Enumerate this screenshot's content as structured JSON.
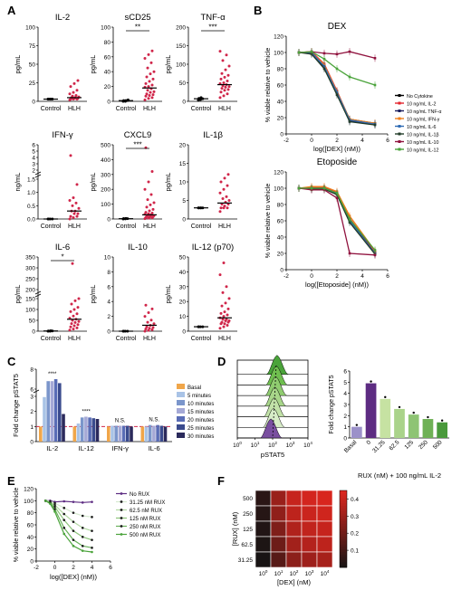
{
  "panels": {
    "A": {
      "letter": "A",
      "groups": [
        "Control",
        "HLH"
      ],
      "ylabel": "pg/mL",
      "ylabel_ifn": "ng/mL",
      "subplots": [
        {
          "title": "IL-2",
          "yticks": [
            "0",
            "25",
            "50",
            "75",
            "100"
          ],
          "ymax": 100,
          "sig": "",
          "control_mean": 3,
          "hlh_mean": 5,
          "control_points": [
            3,
            3,
            3,
            3,
            3
          ],
          "hlh_points": [
            2,
            3,
            3,
            3,
            4,
            4,
            5,
            5,
            6,
            7,
            8,
            10,
            12,
            15,
            20,
            24,
            28
          ]
        },
        {
          "title": "sCD25",
          "yticks": [
            "0",
            "20",
            "40",
            "60",
            "80",
            "100"
          ],
          "ymax": 100,
          "sig": "**",
          "control_mean": 1,
          "hlh_mean": 18,
          "control_points": [
            0,
            0,
            1,
            1,
            1,
            2
          ],
          "hlh_points": [
            2,
            4,
            5,
            7,
            8,
            9,
            10,
            12,
            13,
            15,
            17,
            19,
            20,
            22,
            24,
            27,
            30,
            33,
            37,
            40,
            45,
            52,
            58,
            63,
            68
          ]
        },
        {
          "title": "TNF-α",
          "yticks": [
            "0",
            "50",
            "100",
            "150",
            "200"
          ],
          "ymax": 200,
          "sig": "***",
          "control_mean": 7,
          "hlh_mean": 45,
          "control_points": [
            3,
            5,
            7,
            8,
            10
          ],
          "hlh_points": [
            10,
            15,
            20,
            25,
            30,
            32,
            35,
            38,
            40,
            42,
            45,
            48,
            50,
            55,
            60,
            65,
            70,
            75,
            85,
            95,
            110,
            125,
            135
          ]
        },
        {
          "title": "IFN-γ",
          "yticks": [
            "0.0",
            "0.5",
            "1.0",
            "1.5",
            "2",
            "3",
            "4",
            "5",
            "6"
          ],
          "sig": "",
          "control_mean": 0,
          "hlh_mean": 0.3,
          "control_points": [
            0,
            0,
            0,
            0
          ],
          "hlh_points": [
            0,
            0.05,
            0.1,
            0.1,
            0.2,
            0.2,
            0.3,
            0.3,
            0.4,
            0.5,
            0.6,
            0.7,
            0.8,
            1.3,
            4.3
          ]
        },
        {
          "title": "CXCL9",
          "yticks": [
            "0",
            "100",
            "200",
            "300",
            "400",
            "500"
          ],
          "ymax": 500,
          "sig": "***",
          "control_mean": 2,
          "hlh_mean": 28,
          "control_points": [
            0,
            1,
            2,
            3,
            4
          ],
          "hlh_points": [
            2,
            5,
            8,
            10,
            12,
            15,
            18,
            20,
            22,
            25,
            28,
            32,
            35,
            40,
            45,
            55,
            65,
            80,
            95,
            110,
            130,
            165,
            200,
            250,
            320,
            480
          ]
        },
        {
          "title": "IL-1β",
          "yticks": [
            "0",
            "5",
            "10",
            "15",
            "20"
          ],
          "ymax": 20,
          "sig": "",
          "control_mean": 3,
          "hlh_mean": 4.3,
          "control_points": [
            3,
            3,
            3,
            3,
            3
          ],
          "hlh_points": [
            2,
            3,
            3,
            3,
            3.5,
            4,
            4,
            4.5,
            5,
            5.5,
            6,
            7,
            8,
            9,
            10,
            11,
            12
          ]
        },
        {
          "title": "IL-6",
          "yticks": [
            "0",
            "50",
            "100",
            "150",
            "200",
            "250",
            "300",
            "350"
          ],
          "sig": "*",
          "control_mean": 1,
          "hlh_mean": 55,
          "control_points": [
            0,
            0,
            1,
            1,
            2
          ],
          "hlh_points": [
            5,
            10,
            15,
            20,
            25,
            30,
            35,
            40,
            45,
            50,
            55,
            60,
            70,
            80,
            90,
            100,
            110,
            125,
            140,
            150,
            320
          ]
        },
        {
          "title": "IL-10",
          "yticks": [
            "0",
            "2",
            "4",
            "6",
            "8",
            "10"
          ],
          "ymax": 10,
          "sig": "",
          "control_mean": 0,
          "hlh_mean": 0.8,
          "control_points": [
            0,
            0,
            0,
            0
          ],
          "hlh_points": [
            0,
            0.1,
            0.2,
            0.3,
            0.4,
            0.5,
            0.6,
            0.8,
            1,
            1.2,
            1.5,
            2,
            2.5,
            3,
            3.5
          ]
        },
        {
          "title": "IL-12 (p70)",
          "yticks": [
            "0",
            "10",
            "20",
            "30",
            "40",
            "50"
          ],
          "ymax": 50,
          "sig": "",
          "control_mean": 3,
          "hlh_mean": 9,
          "control_points": [
            3,
            3,
            3,
            3
          ],
          "hlh_points": [
            2,
            3,
            4,
            5,
            5,
            6,
            6,
            7,
            7,
            8,
            8,
            9,
            10,
            11,
            12,
            13,
            15,
            17,
            19,
            22,
            26,
            30,
            38,
            46
          ]
        }
      ]
    },
    "B": {
      "letter": "B",
      "ylabel": "% viable relative to vehicle",
      "xticks": [
        "-2",
        "0",
        "2",
        "4",
        "6"
      ],
      "yticks": [
        "0",
        "20",
        "40",
        "60",
        "80",
        "100",
        "120"
      ],
      "legend": [
        "No Cytokine",
        "10 ng/mL IL-2",
        "10 ng/mL TNF-α",
        "10 ng/mL IFN-γ",
        "10 ng/mL IL-6",
        "10 ng/mL IL-1β",
        "10 ng/mL IL-10",
        "10 ng/mL IL-12"
      ],
      "legend_colors": [
        "#000000",
        "#e4252c",
        "#1b1f5e",
        "#f07f1b",
        "#2f6bb4",
        "#233d2a",
        "#90123e",
        "#4aa33a"
      ],
      "plots": [
        {
          "title": "DEX",
          "xlabel": "log([DEX] (nM))",
          "x": [
            -1,
            0,
            1,
            2,
            3,
            5
          ],
          "series": [
            {
              "color": "#000000",
              "values": [
                100,
                100,
                82,
                52,
                18,
                13
              ]
            },
            {
              "color": "#e4252c",
              "values": [
                100,
                101,
                86,
                53,
                17,
                12
              ]
            },
            {
              "color": "#1b1f5e",
              "values": [
                100,
                99,
                84,
                50,
                16,
                12
              ]
            },
            {
              "color": "#f07f1b",
              "values": [
                100,
                100,
                85,
                52,
                18,
                13
              ]
            },
            {
              "color": "#2f6bb4",
              "values": [
                100,
                100,
                83,
                51,
                17,
                12
              ]
            },
            {
              "color": "#233d2a",
              "values": [
                100,
                98,
                80,
                48,
                15,
                11
              ]
            },
            {
              "color": "#90123e",
              "values": [
                100,
                101,
                99,
                98,
                101,
                93
              ]
            },
            {
              "color": "#4aa33a",
              "values": [
                100,
                101,
                92,
                80,
                70,
                60
              ]
            }
          ]
        },
        {
          "title": "Etoposide",
          "xlabel": "log([Etoposide] (nM))",
          "x": [
            -1,
            0,
            1,
            2,
            3,
            5
          ],
          "series": [
            {
              "color": "#000000",
              "values": [
                100,
                100,
                100,
                94,
                62,
                21
              ]
            },
            {
              "color": "#e4252c",
              "values": [
                100,
                101,
                101,
                95,
                63,
                22
              ]
            },
            {
              "color": "#1b1f5e",
              "values": [
                100,
                99,
                100,
                93,
                61,
                20
              ]
            },
            {
              "color": "#f07f1b",
              "values": [
                100,
                102,
                102,
                96,
                66,
                23
              ]
            },
            {
              "color": "#2f6bb4",
              "values": [
                100,
                100,
                100,
                94,
                60,
                20
              ]
            },
            {
              "color": "#233d2a",
              "values": [
                100,
                99,
                99,
                92,
                58,
                19
              ]
            },
            {
              "color": "#90123e",
              "values": [
                100,
                98,
                98,
                88,
                20,
                18
              ]
            },
            {
              "color": "#4aa33a",
              "values": [
                100,
                100,
                100,
                94,
                62,
                24
              ]
            }
          ]
        }
      ]
    },
    "C": {
      "letter": "C",
      "ylabel": "Fold change pSTAT5",
      "categories": [
        "IL-2",
        "IL-12",
        "IFN-γ",
        "IL-6"
      ],
      "yticks": [
        "0",
        "1",
        "2",
        "3",
        "6",
        "8"
      ],
      "legend": [
        "Basal",
        "5 minutes",
        "10 minutes",
        "15 minutes",
        "20 minutes",
        "25 minutes",
        "30 minutes"
      ],
      "colors": [
        "#f0a64a",
        "#a9c3e6",
        "#7b96cb",
        "#a5a9d6",
        "#5a6db6",
        "#3b4b8e",
        "#2b2a5c"
      ],
      "values": [
        [
          1,
          5.2,
          6.8,
          6.8,
          7.0,
          6.6,
          3.5
        ],
        [
          1,
          1.2,
          1.6,
          1.65,
          1.6,
          1.55,
          1.5
        ],
        [
          1,
          1.05,
          1.05,
          1.05,
          1.05,
          1.05,
          1.0
        ],
        [
          1,
          1.0,
          1.1,
          1.05,
          1.1,
          1.05,
          1.0
        ]
      ],
      "sig": [
        "****",
        "****",
        "N.S.",
        "N.S."
      ]
    },
    "D": {
      "letter": "D",
      "hist_xlabel": "pSTAT5",
      "hist_xticks": [
        "10^0",
        "10^1",
        "10^2",
        "10^3",
        "10^4"
      ],
      "hist_colors": [
        "#4aa33a",
        "#6fbf4f",
        "#90cc70",
        "#a8d68a",
        "#c2e2a8",
        "#d8edc8",
        "#7a4fa0"
      ],
      "bar_ylabel": "Fold change pSTAT5",
      "bar_yticks": [
        "0",
        "1",
        "2",
        "3",
        "4",
        "5",
        "6"
      ],
      "bar_categories": [
        "Basal",
        "0",
        "31.25",
        "62.5",
        "125",
        "250",
        "500"
      ],
      "bar_values": [
        1.0,
        4.9,
        3.5,
        2.6,
        2.1,
        1.7,
        1.4
      ],
      "bar_colors": [
        "#9b91c9",
        "#5d2c82",
        "#c6e2a2",
        "#aad38a",
        "#8ec474",
        "#6fb156",
        "#4a9a3c"
      ],
      "bar_xlabel": "RUX (nM) + 100 ng/mL IL-2"
    },
    "E": {
      "letter": "E",
      "ylabel": "% viable relative to vehicle",
      "xlabel": "log([DEX] (nM))",
      "xticks": [
        "-2",
        "0",
        "2",
        "4",
        "6"
      ],
      "yticks": [
        "0",
        "20",
        "40",
        "60",
        "80",
        "100",
        "120"
      ],
      "legend": [
        "No RUX",
        "31.25 nM RUX",
        "62.5 nM RUX",
        "125 nM RUX",
        "250 nM RUX",
        "500 nM RUX"
      ],
      "colors": [
        "#5d2c82",
        "#1a1a1a",
        "#1a1a1a",
        "#1a1a1a",
        "#1a1a1a",
        "#4aa33a"
      ],
      "x": [
        -1,
        -0.5,
        0,
        1,
        2,
        3,
        4
      ],
      "series": [
        [
          100,
          100,
          98,
          99,
          98,
          97,
          98
        ],
        [
          100,
          99,
          96,
          88,
          80,
          75,
          73
        ],
        [
          100,
          98,
          93,
          78,
          65,
          55,
          50
        ],
        [
          100,
          97,
          90,
          68,
          50,
          40,
          35
        ],
        [
          100,
          96,
          86,
          55,
          35,
          25,
          22
        ],
        [
          100,
          95,
          82,
          45,
          25,
          17,
          15
        ]
      ]
    },
    "F": {
      "letter": "F",
      "ylabel": "[RUX] (nM)",
      "xlabel": "[DEX] (nM)",
      "rows": [
        "500",
        "250",
        "125",
        "62.5",
        "31.25"
      ],
      "cols": [
        "10^0",
        "10^1",
        "10^2",
        "10^3",
        "10^4"
      ],
      "values": [
        [
          0.05,
          0.3,
          0.4,
          0.43,
          0.44
        ],
        [
          0.04,
          0.28,
          0.38,
          0.41,
          0.42
        ],
        [
          0.03,
          0.24,
          0.35,
          0.39,
          0.4
        ],
        [
          0.02,
          0.2,
          0.32,
          0.36,
          0.38
        ],
        [
          0.01,
          0.15,
          0.27,
          0.31,
          0.33
        ]
      ],
      "colorbar_ticks": [
        "0.4",
        "0.3",
        "0.2",
        "0.1"
      ],
      "vmax": 0.45
    }
  }
}
